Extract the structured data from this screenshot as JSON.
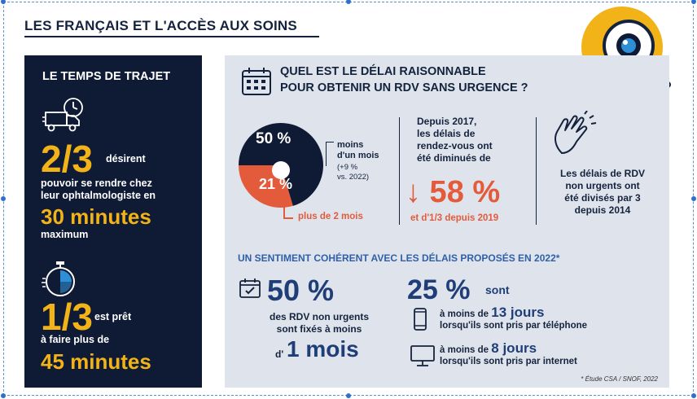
{
  "page_title": "LES FRANÇAIS ET L'ACCÈS AUX SOINS",
  "left": {
    "heading": "LE TEMPS DE TRAJET",
    "stat1_value": "2/3",
    "stat1_line1": "désirent",
    "stat1_line2": "pouvoir se rendre chez",
    "stat1_line3": "leur ophtalmologiste en",
    "stat1_value2": "30 minutes",
    "stat1_line4": "maximum",
    "stat2_value": "1/3",
    "stat2_line1": "est prêt",
    "stat2_line2": "à faire plus de",
    "stat2_value2": "45 minutes"
  },
  "right": {
    "question_line1": "QUEL EST LE DÉLAI RAISONNABLE",
    "question_line2": "POUR OBTENIR UN RDV SANS URGENCE ?",
    "pie": {
      "label_top": "50 %",
      "label_bottom": "21 %",
      "note_line1": "moins",
      "note_line2": "d'un mois",
      "note_small1": "(+9 %",
      "note_small2": "vs. 2022)",
      "more_label": "plus de 2 mois"
    },
    "since_line1": "Depuis 2017,",
    "since_line2": "les délais de",
    "since_line3": "rendez-vous ont",
    "since_line4": "été diminués de",
    "since_value": "↓ 58 %",
    "since_2019": "et d'1/3 depuis 2019",
    "divided_line1": "Les délais de RDV",
    "divided_line2": "non urgents ont",
    "divided_line3": "été divisés par 3",
    "divided_line4": "depuis 2014",
    "sentiment": "UN SENTIMENT COHÉRENT AVEC LES DÉLAIS PROPOSÉS EN 2022*",
    "b50_value": "50 %",
    "b50_line1": "des RDV non urgents",
    "b50_line2": "sont fixés à moins",
    "b50_d": "d'",
    "b50_value2": "1 mois",
    "b25_value": "25 %",
    "b25_sont": "sont",
    "phone_pre": "à moins de ",
    "phone_days": "13 jours",
    "phone_line2": "lorsqu'ils sont pris par téléphone",
    "net_pre": "à moins de ",
    "net_days": "8 jours",
    "net_line2": "lorsqu'ils sont pris par internet",
    "source": "* Étude CSA / SNOF, 2022"
  },
  "chart_data": {
    "type": "pie",
    "categories": [
      "moins d'un mois",
      "plus de 2 mois"
    ],
    "values": [
      50,
      21
    ],
    "title": "",
    "colors": [
      "#0f1b35",
      "#e35b3b"
    ]
  },
  "colors": {
    "navy": "#0f1b35",
    "yellow": "#f2b319",
    "orange": "#e35b3b",
    "panel": "#dfe4ec",
    "blue": "#1f3e78"
  }
}
